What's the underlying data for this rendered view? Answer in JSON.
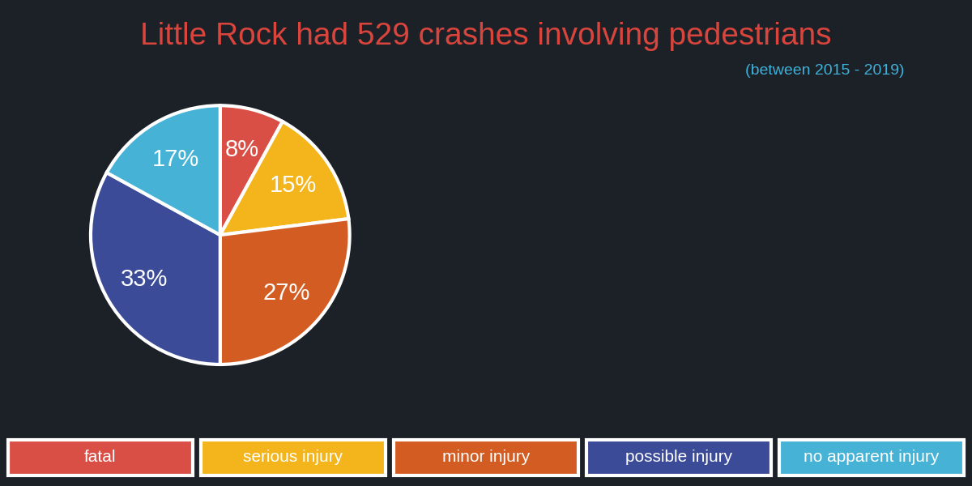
{
  "chart_data": {
    "type": "pie",
    "title": "Little Rock had 529 crashes involving pedestrians",
    "subtitle": "(between 2015 - 2019)",
    "categories": [
      "fatal",
      "serious injury",
      "minor injury",
      "possible injury",
      "no apparent injury"
    ],
    "values": [
      8,
      15,
      27,
      33,
      17
    ],
    "value_labels": [
      "8%",
      "15%",
      "27%",
      "33%",
      "17%"
    ],
    "colors": [
      "#d94f45",
      "#f3b51b",
      "#d35c22",
      "#3b4b98",
      "#45b2d6"
    ],
    "data_labels": true,
    "legend": "lower center"
  }
}
